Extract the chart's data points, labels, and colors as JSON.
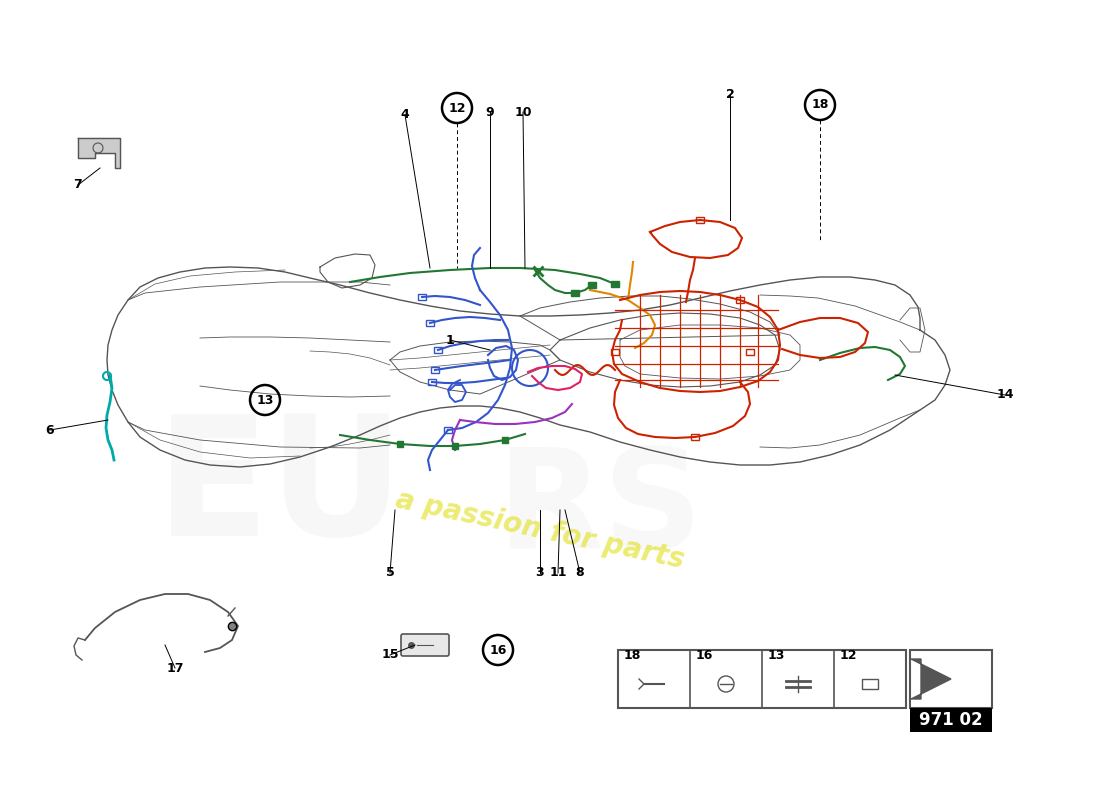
{
  "part_number": "971 02",
  "background_color": "#ffffff",
  "car_color": "#555555",
  "wiring_colors": {
    "blue": "#3355cc",
    "red": "#cc2200",
    "green": "#227733",
    "orange": "#dd8800",
    "cyan": "#00aaaa",
    "pink": "#dd2266",
    "purple": "#9933bb",
    "dark_green": "#116622",
    "lime_green": "#55aa33"
  },
  "watermark_color": "#dddd00",
  "watermark_alpha": 0.55,
  "label_font_size": 9,
  "circled_numbers": [
    12,
    13,
    16,
    18
  ]
}
